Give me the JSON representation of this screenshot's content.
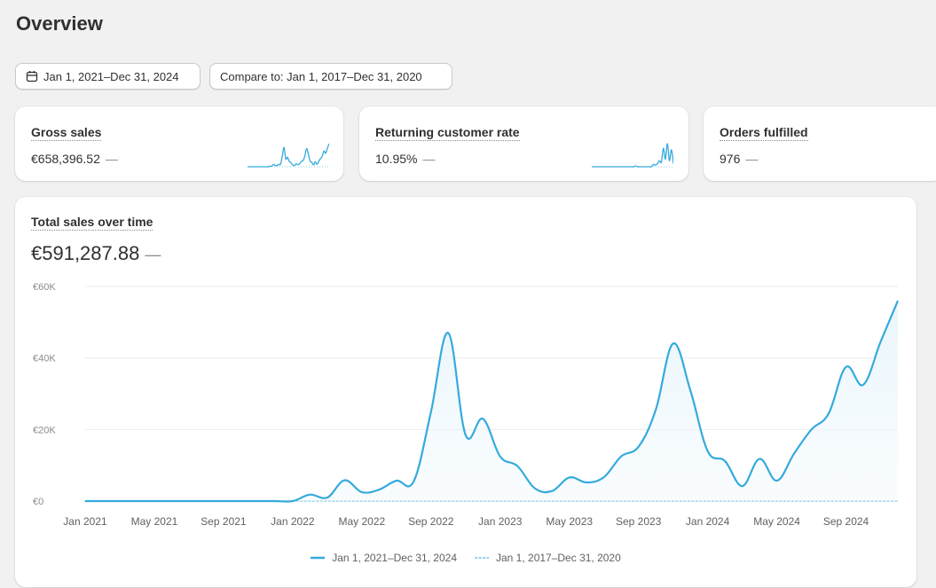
{
  "header": {
    "title": "Overview"
  },
  "filters": {
    "date_range": "Jan 1, 2021–Dec 31, 2024",
    "compare": "Compare to: Jan 1, 2017–Dec 31, 2020"
  },
  "metrics": [
    {
      "label": "Gross sales",
      "value": "€658,396.52",
      "change": "—"
    },
    {
      "label": "Returning customer rate",
      "value": "10.95%",
      "change": "—"
    },
    {
      "label": "Orders fulfilled",
      "value": "976",
      "change": "—"
    }
  ],
  "colors": {
    "primary": "#35aadd",
    "secondary": "#8fd2ee",
    "fill": "#eaf6fc",
    "text": "#303030",
    "muted": "#616161"
  },
  "chart_data": {
    "type": "area",
    "title": "Total sales over time",
    "total": "€591,287.88",
    "total_change": "—",
    "ylim": [
      0,
      60000
    ],
    "y_ticks": [
      0,
      20000,
      40000,
      60000
    ],
    "y_tick_labels": [
      "€0",
      "€20K",
      "€40K",
      "€60K"
    ],
    "x_tick_labels": [
      "Jan 2021",
      "May 2021",
      "Sep 2021",
      "Jan 2022",
      "May 2022",
      "Sep 2022",
      "Jan 2023",
      "May 2023",
      "Sep 2023",
      "Jan 2024",
      "May 2024",
      "Sep 2024"
    ],
    "grid": true,
    "legend_position": "bottom",
    "series": [
      {
        "name": "Jan 1, 2021–Dec 31, 2024",
        "style": "solid",
        "values": [
          0,
          0,
          0,
          0,
          0,
          0,
          0,
          0,
          0,
          0,
          0,
          0,
          0,
          1800,
          1000,
          5800,
          2500,
          3200,
          5700,
          5500,
          25000,
          47000,
          18500,
          23000,
          12500,
          9800,
          3600,
          2800,
          6600,
          5200,
          6700,
          12500,
          15200,
          25500,
          44000,
          31000,
          14000,
          11200,
          4200,
          11800,
          5700,
          13300,
          20000,
          24500,
          37500,
          32500,
          44500,
          56000
        ]
      },
      {
        "name": "Jan 1, 2017–Dec 31, 2020",
        "style": "dotted",
        "values": [
          0,
          0,
          0,
          0,
          0,
          0,
          0,
          0,
          0,
          0,
          0,
          0,
          0,
          0,
          0,
          0,
          0,
          0,
          0,
          0,
          0,
          0,
          0,
          0,
          0,
          0,
          0,
          0,
          0,
          0,
          0,
          0,
          0,
          0,
          0,
          0,
          0,
          0,
          0,
          0,
          0,
          0,
          0,
          0,
          0,
          0,
          0,
          0
        ]
      }
    ]
  },
  "sparklines": {
    "gross_sales": [
      0,
      0,
      0,
      0,
      0,
      0,
      0,
      0,
      0,
      0,
      0,
      0,
      0,
      2,
      1,
      6,
      3,
      3,
      6,
      6,
      25,
      47,
      19,
      23,
      13,
      10,
      4,
      3,
      7,
      5,
      7,
      13,
      15,
      26,
      44,
      31,
      14,
      11,
      4,
      12,
      6,
      13,
      20,
      25,
      38,
      33,
      45,
      56
    ],
    "returning_rate": [
      0,
      0,
      0,
      0,
      0,
      0,
      0,
      0,
      0,
      0,
      0,
      0,
      0,
      0,
      0,
      0,
      0,
      0,
      0,
      0,
      0,
      0,
      1,
      0,
      0,
      0,
      0,
      0,
      0,
      0,
      0,
      3,
      2,
      4,
      8,
      6,
      24,
      10,
      30,
      8,
      22,
      4
    ]
  }
}
